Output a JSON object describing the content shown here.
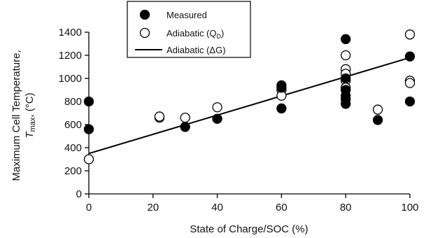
{
  "chart_data": {
    "type": "scatter",
    "xlabel": "State of Charge/SOC (%)",
    "ylabel_line1": "Maximum Cell Temperature,",
    "ylabel_line2_main": "T",
    "ylabel_line2_sub": "max",
    "ylabel_line2_rest": ", (°C)",
    "xlim": [
      0,
      100
    ],
    "ylim": [
      0,
      1400
    ],
    "xticks": [
      0,
      20,
      40,
      60,
      80,
      100
    ],
    "yticks": [
      0,
      200,
      400,
      600,
      800,
      1000,
      1200,
      1400
    ],
    "grid": false,
    "legend_position": "top-center",
    "series": [
      {
        "name": "Measured",
        "marker": "filled-circle",
        "points": [
          [
            0,
            800
          ],
          [
            0,
            560
          ],
          [
            30,
            580
          ],
          [
            40,
            650
          ],
          [
            60,
            940
          ],
          [
            60,
            920
          ],
          [
            60,
            740
          ],
          [
            80,
            1340
          ],
          [
            80,
            1000
          ],
          [
            80,
            900
          ],
          [
            80,
            850
          ],
          [
            80,
            820
          ],
          [
            80,
            780
          ],
          [
            90,
            640
          ],
          [
            100,
            1190
          ],
          [
            100,
            800
          ]
        ]
      },
      {
        "name": "Adiabatic (Q",
        "name_sub": "D",
        "name_rest": ")",
        "marker": "open-circle",
        "points": [
          [
            0,
            300
          ],
          [
            22,
            660
          ],
          [
            22,
            670
          ],
          [
            30,
            660
          ],
          [
            40,
            750
          ],
          [
            60,
            900
          ],
          [
            60,
            850
          ],
          [
            80,
            1200
          ],
          [
            80,
            1080
          ],
          [
            80,
            1040
          ],
          [
            80,
            980
          ],
          [
            80,
            920
          ],
          [
            90,
            730
          ],
          [
            100,
            1380
          ],
          [
            100,
            980
          ],
          [
            100,
            960
          ]
        ]
      },
      {
        "name": "Adiabatic (ΔG)",
        "marker": "line",
        "points": [
          [
            0,
            350
          ],
          [
            100,
            1180
          ]
        ]
      }
    ]
  }
}
